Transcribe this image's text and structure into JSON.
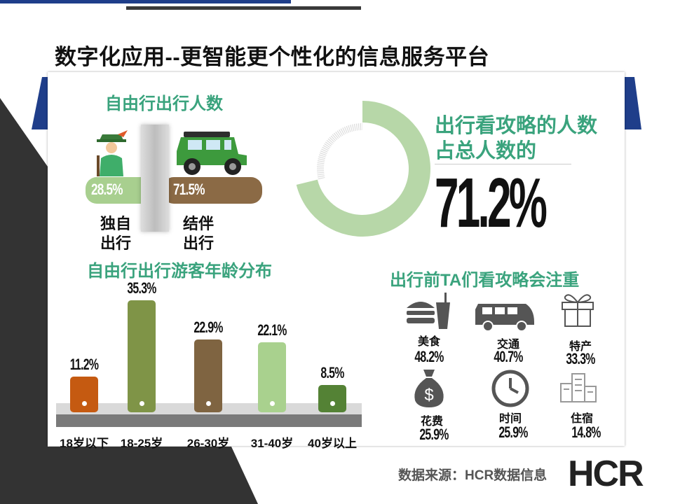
{
  "title": "数字化应用--更智能更个性化的信息服务平台",
  "companion": {
    "heading": "自由行出行人数",
    "solo": {
      "label_line1": "独自",
      "label_line2": "出行",
      "percent": "28.5%",
      "color": "#a8cf8f"
    },
    "group": {
      "label_line1": "结伴",
      "label_line2": "出行",
      "percent": "71.5%",
      "color": "#8b6a45"
    }
  },
  "guide_share": {
    "heading_line1": "出行看攻略的人数",
    "heading_line2": "占总人数的",
    "value_text": "71.2%",
    "value": 71.2,
    "ring_color": "#b7d7a8"
  },
  "chart_data": {
    "type": "bar",
    "title": "自由行出行游客年龄分布",
    "categories": [
      "18岁以下",
      "18-25岁",
      "26-30岁",
      "31-40岁",
      "40岁以上"
    ],
    "values": [
      11.2,
      35.3,
      22.9,
      22.1,
      8.5
    ],
    "value_labels": [
      "11.2%",
      "35.3%",
      "22.9%",
      "22.1%",
      "8.5%"
    ],
    "colors": [
      "#c55a11",
      "#7f9447",
      "#7f6441",
      "#a9d18e",
      "#548235"
    ],
    "ylim": [
      0,
      35.3
    ]
  },
  "focus": {
    "heading": "出行前TA们看攻略会注重",
    "items": [
      {
        "label": "美食",
        "value": "48.2%",
        "icon": "food-icon"
      },
      {
        "label": "交通",
        "value": "40.7%",
        "icon": "van-icon"
      },
      {
        "label": "特产",
        "value": "33.3%",
        "icon": "gift-icon"
      },
      {
        "label": "花费",
        "value": "25.9%",
        "icon": "money-bag-icon"
      },
      {
        "label": "时间",
        "value": "25.9%",
        "icon": "clock-icon"
      },
      {
        "label": "住宿",
        "value": "14.8%",
        "icon": "building-icon"
      }
    ]
  },
  "source": "数据来源：HCR数据信息",
  "logo": "HCR",
  "colors": {
    "accent_green": "#3aa37d",
    "navy": "#1f3e8a",
    "dark": "#3a3a3a"
  }
}
